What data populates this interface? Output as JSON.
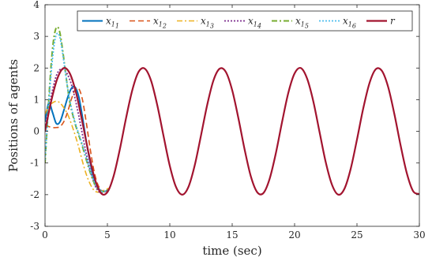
{
  "chart_data": {
    "type": "line",
    "xlabel": "time (sec)",
    "ylabel": "Positions of agents",
    "xlim": [
      0,
      30
    ],
    "ylim": [
      -3,
      4
    ],
    "xticks": [
      "0",
      "5",
      "10",
      "15",
      "20",
      "25",
      "30"
    ],
    "yticks": [
      "-3",
      "-2",
      "-1",
      "0",
      "1",
      "2",
      "3",
      "4"
    ],
    "grid": false,
    "legend_position": "top, single row",
    "reference": {
      "name": "r",
      "description": "2 sin(t)-style reference",
      "x": [
        0,
        0.5,
        1,
        1.5,
        2,
        2.5,
        3,
        3.5,
        4,
        4.5,
        5,
        5.5,
        6,
        6.5,
        7,
        7.5,
        8,
        8.5,
        9,
        9.5,
        10,
        10.5,
        11,
        11.5,
        12,
        12.5,
        13,
        13.5,
        14,
        14.5,
        15,
        15.5,
        16,
        16.5,
        17,
        17.5,
        18,
        18.5,
        19,
        19.5,
        20,
        20.5,
        21,
        21.5,
        22,
        22.5,
        23,
        23.5,
        24,
        24.5,
        25,
        25.5,
        26,
        26.5,
        27,
        27.5,
        28,
        28.5,
        29,
        29.5,
        30
      ],
      "values": [
        0,
        0.96,
        1.68,
        2.0,
        1.82,
        1.2,
        0.28,
        -0.7,
        -1.51,
        -1.96,
        -1.92,
        -1.41,
        -0.56,
        0.43,
        1.31,
        1.88,
        1.98,
        1.6,
        0.82,
        -0.15,
        -1.09,
        -1.76,
        -2.0,
        -1.75,
        -1.07,
        -0.13,
        0.84,
        1.61,
        1.98,
        1.87,
        1.3,
        0.41,
        -0.58,
        -1.43,
        -1.92,
        -1.95,
        -1.5,
        -0.69,
        0.3,
        1.22,
        1.83,
        2.0,
        1.67,
        0.95,
        -0.02,
        -0.98,
        -1.69,
        -2.0,
        -1.81,
        -1.18,
        -0.26,
        0.72,
        1.52,
        1.96,
        1.91,
        1.4,
        0.54,
        -0.45,
        -1.33,
        -1.89,
        -1.98
      ]
    },
    "series": [
      {
        "name": "x",
        "sub": "1",
        "subsub": "1",
        "color": "#0072BD",
        "dash": "",
        "width": 2.0,
        "x": [
          0,
          0.3,
          0.6,
          0.9,
          1.2,
          1.5,
          1.8,
          2.1,
          2.4,
          2.7,
          3.0,
          3.3,
          3.6,
          3.9,
          4.2,
          4.5,
          4.8,
          5.1
        ],
        "values": [
          0.3,
          0.9,
          0.6,
          0.25,
          0.3,
          0.65,
          1.05,
          1.35,
          1.4,
          1.1,
          0.45,
          -0.3,
          -0.95,
          -1.45,
          -1.75,
          -1.88,
          -1.9,
          -1.85
        ]
      },
      {
        "name": "x",
        "sub": "1",
        "subsub": "2",
        "color": "#D95319",
        "dash": "7,4",
        "width": 1.6,
        "x": [
          0,
          0.3,
          0.6,
          0.9,
          1.2,
          1.5,
          1.8,
          2.1,
          2.4,
          2.7,
          3.0,
          3.3,
          3.6,
          3.9,
          4.2,
          4.5,
          4.8,
          5.1
        ],
        "values": [
          0.2,
          0.15,
          0.12,
          0.12,
          0.15,
          0.3,
          0.6,
          1.0,
          1.3,
          1.35,
          1.0,
          0.3,
          -0.5,
          -1.2,
          -1.65,
          -1.85,
          -1.9,
          -1.85
        ]
      },
      {
        "name": "x",
        "sub": "1",
        "subsub": "3",
        "color": "#EDB120",
        "dash": "7,3,2,3",
        "width": 1.6,
        "x": [
          0,
          0.3,
          0.6,
          0.9,
          1.2,
          1.5,
          1.8,
          2.1,
          2.4,
          2.7,
          3.0,
          3.3,
          3.6,
          3.9,
          4.2,
          4.5,
          4.8,
          5.1
        ],
        "values": [
          0.55,
          0.8,
          0.9,
          0.95,
          0.9,
          0.75,
          0.55,
          0.25,
          -0.1,
          -0.5,
          -0.95,
          -1.35,
          -1.65,
          -1.85,
          -1.92,
          -1.9,
          -1.85,
          -1.8
        ]
      },
      {
        "name": "x",
        "sub": "1",
        "subsub": "4",
        "color": "#7E2F8E",
        "dash": "2,2",
        "width": 1.8,
        "x": [
          0,
          0.3,
          0.6,
          0.9,
          1.2,
          1.5,
          1.8,
          2.1,
          2.4,
          2.7,
          3.0,
          3.3,
          3.6,
          3.9,
          4.2,
          4.5,
          4.8,
          5.1
        ],
        "values": [
          0.1,
          0.7,
          1.3,
          1.75,
          1.95,
          1.95,
          1.8,
          1.5,
          1.05,
          0.5,
          -0.1,
          -0.7,
          -1.2,
          -1.6,
          -1.85,
          -1.95,
          -1.9,
          -1.85
        ]
      },
      {
        "name": "x",
        "sub": "1",
        "subsub": "5",
        "color": "#77AC30",
        "dash": "7,3,2,3",
        "width": 2.0,
        "x": [
          0,
          0.2,
          0.4,
          0.6,
          0.8,
          1.0,
          1.2,
          1.4,
          1.6,
          1.8,
          2.0,
          2.3,
          2.6,
          2.9,
          3.2,
          3.5,
          3.8,
          4.1,
          4.4,
          4.7,
          5.0
        ],
        "values": [
          -1.0,
          0.3,
          1.6,
          2.6,
          3.15,
          3.3,
          3.1,
          2.6,
          2.0,
          1.4,
          0.9,
          0.4,
          0.0,
          -0.35,
          -0.75,
          -1.15,
          -1.5,
          -1.75,
          -1.88,
          -1.9,
          -1.85
        ]
      },
      {
        "name": "x",
        "sub": "1",
        "subsub": "6",
        "color": "#4DBEEE",
        "dash": "2,2",
        "width": 1.8,
        "x": [
          0,
          0.2,
          0.4,
          0.6,
          0.8,
          1.0,
          1.2,
          1.4,
          1.6,
          1.8,
          2.0,
          2.3,
          2.6,
          2.9,
          3.2,
          3.5,
          3.8,
          4.1,
          4.4,
          4.7,
          5.0
        ],
        "values": [
          -0.9,
          0.3,
          1.4,
          2.3,
          2.9,
          3.1,
          2.95,
          2.5,
          1.95,
          1.4,
          0.95,
          0.45,
          0.05,
          -0.3,
          -0.7,
          -1.1,
          -1.45,
          -1.72,
          -1.86,
          -1.9,
          -1.85
        ]
      }
    ],
    "reference_style": {
      "color": "#A2142F",
      "width": 2.2
    }
  }
}
